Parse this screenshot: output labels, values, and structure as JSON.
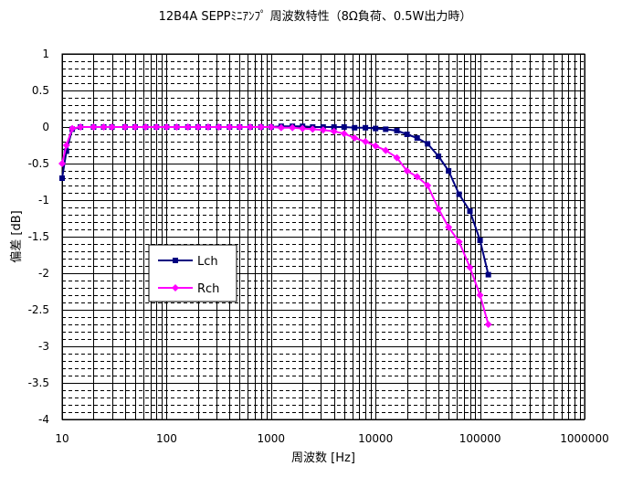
{
  "chart_data": {
    "type": "line",
    "title": "12B4A SEPPﾐﾆｱﾝﾌﾟ 周波数特性（8Ω負荷、0.5W出力時）",
    "xlabel": "周波数 [Hz]",
    "ylabel": "偏差 [dB]",
    "xscale": "log",
    "xlim": [
      10,
      1000000
    ],
    "ylim": [
      -4,
      1
    ],
    "x_ticks": [
      "10",
      "100",
      "1000",
      "10000",
      "100000",
      "1000000"
    ],
    "y_ticks": [
      "1",
      "0.5",
      "0",
      "-0.5",
      "-1",
      "-1.5",
      "-2",
      "-2.5",
      "-3",
      "-3.5",
      "-4"
    ],
    "grid": true,
    "legend_position": "center-left",
    "series": [
      {
        "name": "Lch",
        "color": "#000080",
        "marker": "square",
        "points": [
          [
            10,
            -0.7
          ],
          [
            11,
            -0.33
          ],
          [
            12.5,
            -0.03
          ],
          [
            15,
            0
          ],
          [
            20,
            0
          ],
          [
            25,
            0
          ],
          [
            30,
            0
          ],
          [
            40,
            0
          ],
          [
            50,
            0
          ],
          [
            63,
            0
          ],
          [
            80,
            0
          ],
          [
            100,
            0
          ],
          [
            125,
            0
          ],
          [
            160,
            0
          ],
          [
            200,
            0
          ],
          [
            250,
            0
          ],
          [
            315,
            0
          ],
          [
            400,
            0
          ],
          [
            500,
            0
          ],
          [
            630,
            0
          ],
          [
            800,
            0
          ],
          [
            1000,
            0
          ],
          [
            1250,
            0.01
          ],
          [
            1600,
            0.01
          ],
          [
            2000,
            0.01
          ],
          [
            2500,
            0
          ],
          [
            3150,
            0
          ],
          [
            4000,
            0
          ],
          [
            5000,
            0
          ],
          [
            6300,
            -0.01
          ],
          [
            8000,
            -0.01
          ],
          [
            10000,
            -0.02
          ],
          [
            12500,
            -0.03
          ],
          [
            16000,
            -0.05
          ],
          [
            20000,
            -0.1
          ],
          [
            25000,
            -0.15
          ],
          [
            31500,
            -0.23
          ],
          [
            40000,
            -0.4
          ],
          [
            50000,
            -0.6
          ],
          [
            63000,
            -0.92
          ],
          [
            80000,
            -1.15
          ],
          [
            100000,
            -1.55
          ],
          [
            120000,
            -2.02
          ]
        ]
      },
      {
        "name": "Rch",
        "color": "#FF00FF",
        "marker": "diamond",
        "points": [
          [
            10,
            -0.5
          ],
          [
            11,
            -0.25
          ],
          [
            12.5,
            -0.02
          ],
          [
            15,
            0
          ],
          [
            20,
            0
          ],
          [
            25,
            0
          ],
          [
            30,
            0
          ],
          [
            40,
            0
          ],
          [
            50,
            0
          ],
          [
            63,
            0
          ],
          [
            80,
            0
          ],
          [
            100,
            0
          ],
          [
            125,
            0
          ],
          [
            160,
            0
          ],
          [
            200,
            0
          ],
          [
            250,
            0
          ],
          [
            315,
            0
          ],
          [
            400,
            0
          ],
          [
            500,
            0
          ],
          [
            630,
            0
          ],
          [
            800,
            0
          ],
          [
            1000,
            0
          ],
          [
            1250,
            -0.01
          ],
          [
            1600,
            -0.01
          ],
          [
            2000,
            -0.02
          ],
          [
            2500,
            -0.03
          ],
          [
            3150,
            -0.04
          ],
          [
            4000,
            -0.06
          ],
          [
            5000,
            -0.09
          ],
          [
            6300,
            -0.15
          ],
          [
            8000,
            -0.2
          ],
          [
            10000,
            -0.26
          ],
          [
            12500,
            -0.32
          ],
          [
            16000,
            -0.42
          ],
          [
            20000,
            -0.6
          ],
          [
            25000,
            -0.68
          ],
          [
            31500,
            -0.8
          ],
          [
            40000,
            -1.12
          ],
          [
            50000,
            -1.37
          ],
          [
            63000,
            -1.57
          ],
          [
            80000,
            -1.92
          ],
          [
            100000,
            -2.3
          ],
          [
            120000,
            -2.7
          ]
        ]
      }
    ]
  }
}
